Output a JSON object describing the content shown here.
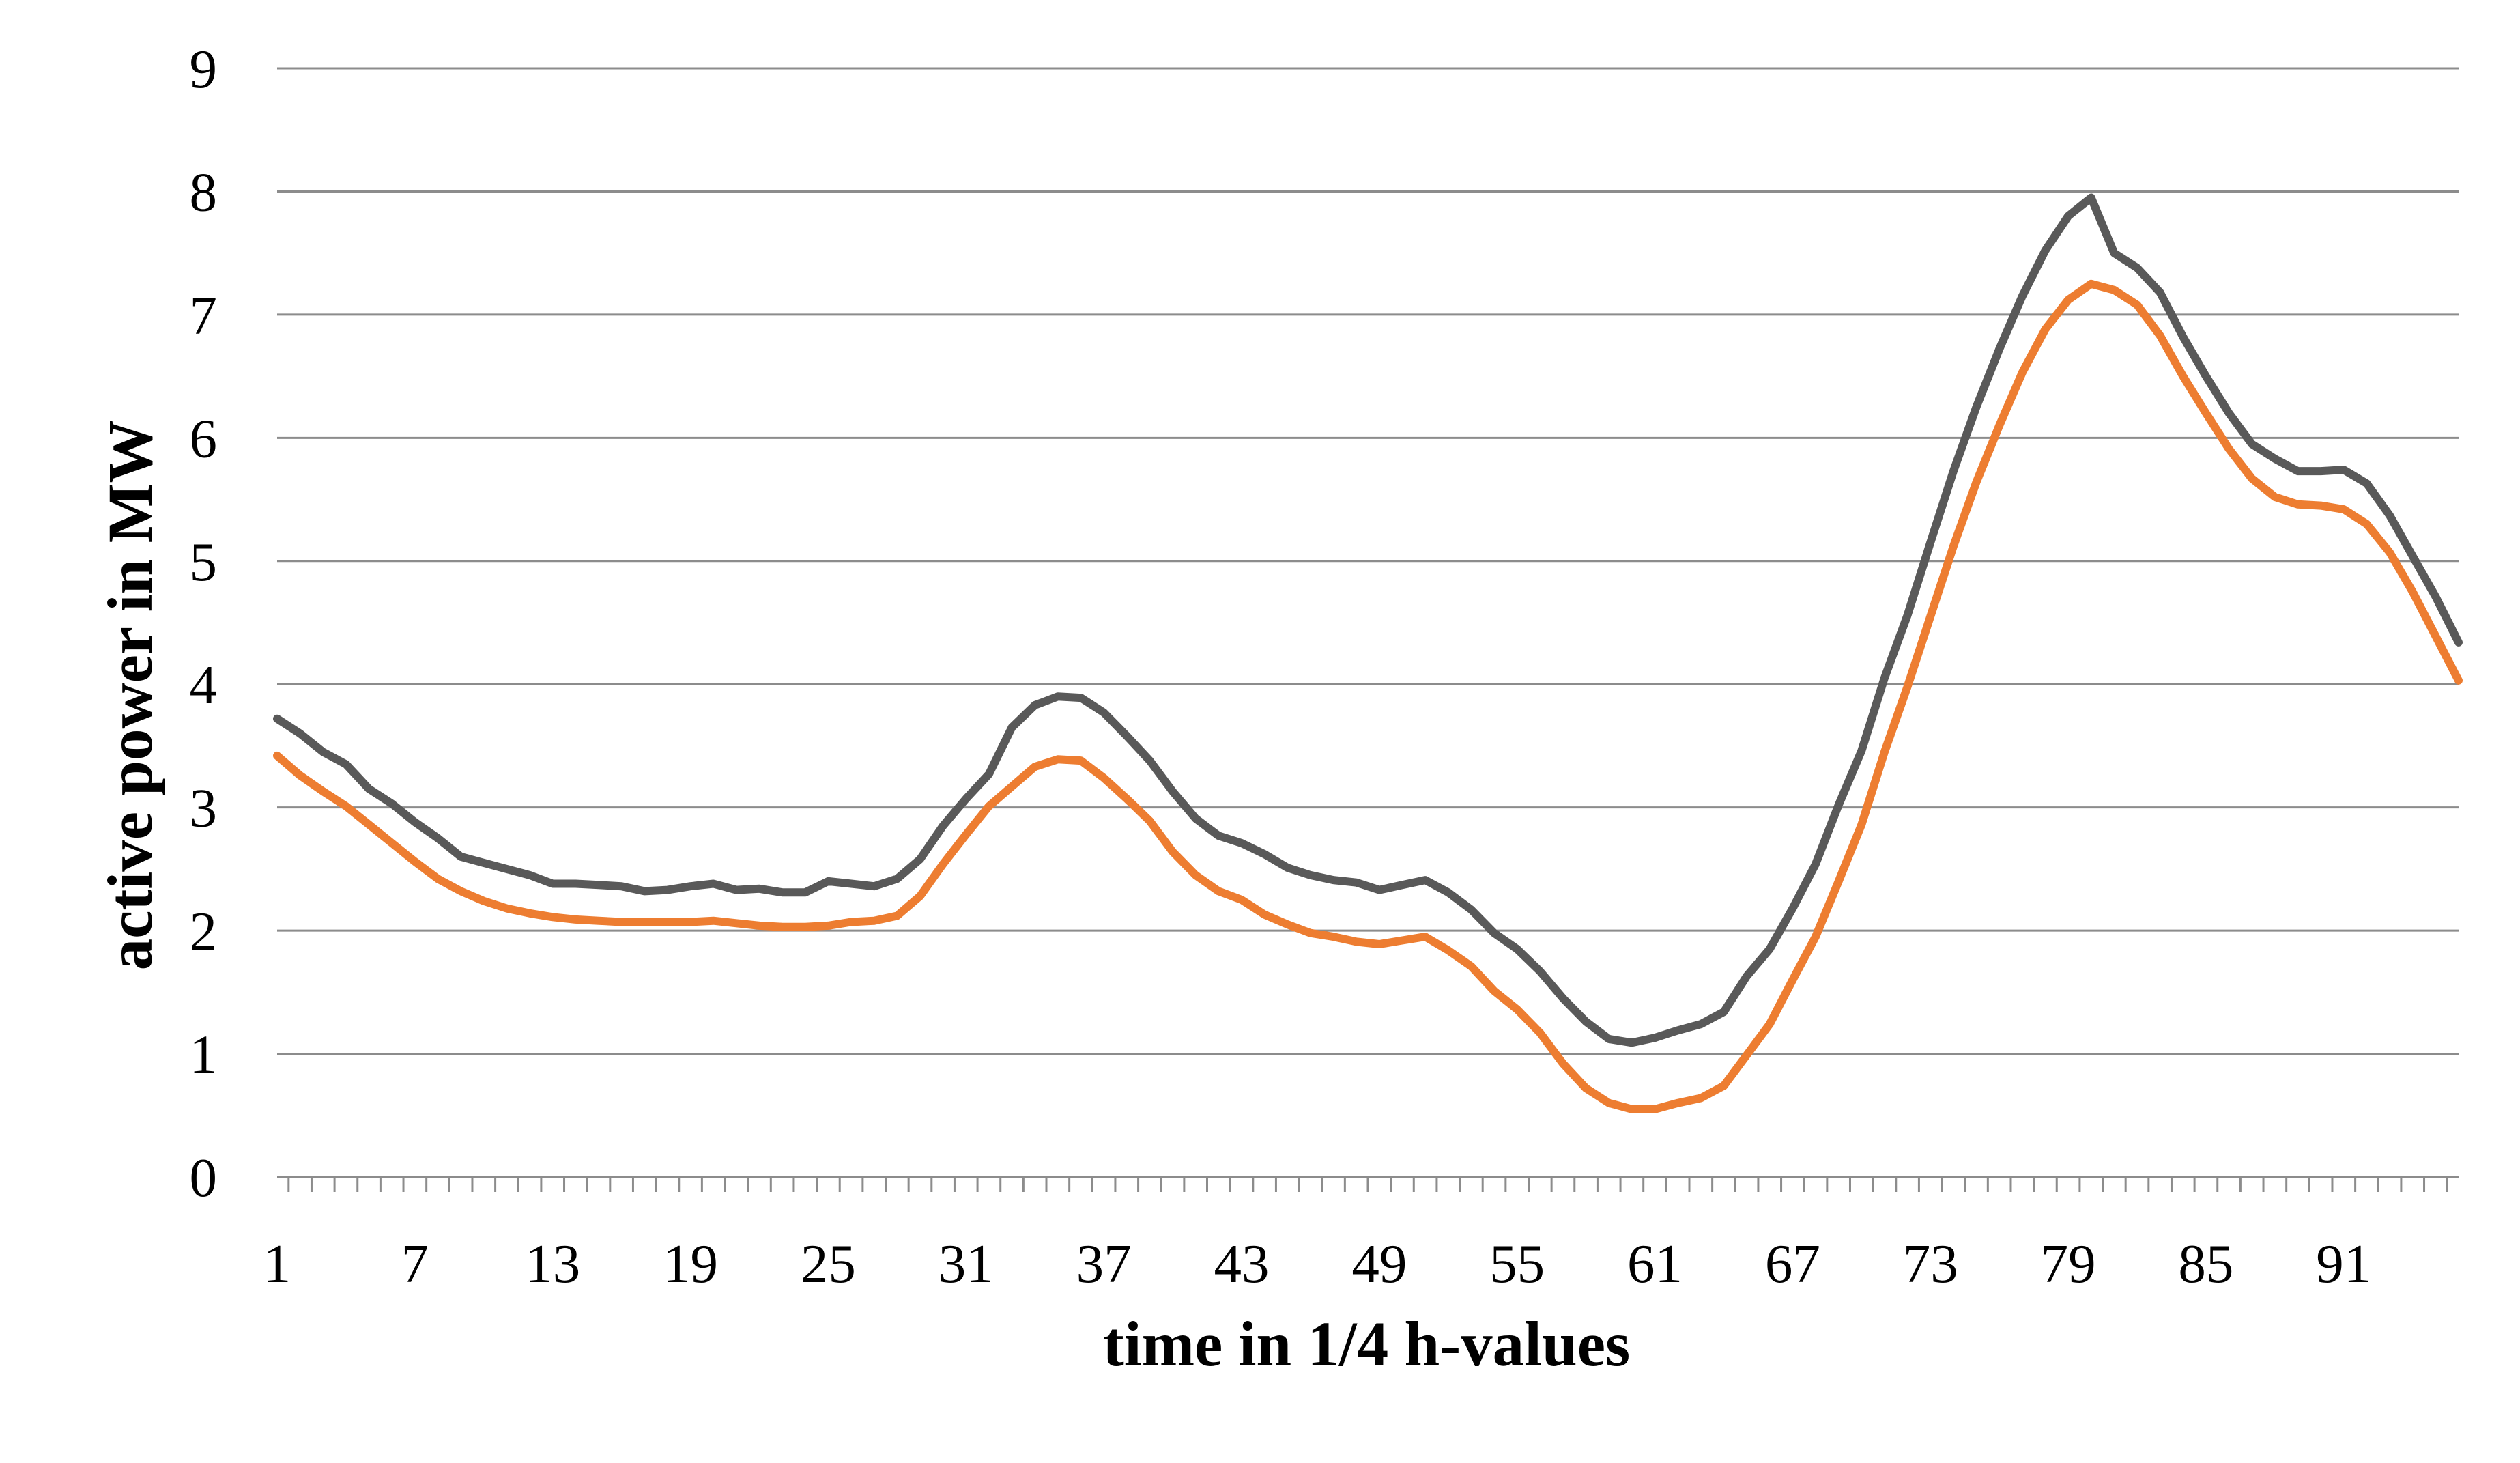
{
  "chart_data": {
    "type": "line",
    "title": "",
    "xlabel": "time in 1/4 h-values",
    "ylabel": "active power in MW",
    "ylim": [
      0,
      9
    ],
    "yticks": [
      0,
      1,
      2,
      3,
      4,
      5,
      6,
      7,
      8,
      9
    ],
    "xticks": [
      1,
      7,
      13,
      19,
      25,
      31,
      37,
      43,
      49,
      55,
      61,
      67,
      73,
      79,
      85,
      91
    ],
    "x_range": [
      1,
      96
    ],
    "grid": "horizontal",
    "legend": "none",
    "series": [
      {
        "color": "#595959",
        "x": [
          1,
          2,
          3,
          4,
          5,
          6,
          7,
          8,
          9,
          10,
          11,
          12,
          13,
          14,
          15,
          16,
          17,
          18,
          19,
          20,
          21,
          22,
          23,
          24,
          25,
          26,
          27,
          28,
          29,
          30,
          31,
          32,
          33,
          34,
          35,
          36,
          37,
          38,
          39,
          40,
          41,
          42,
          43,
          44,
          45,
          46,
          47,
          48,
          49,
          50,
          51,
          52,
          53,
          54,
          55,
          56,
          57,
          58,
          59,
          60,
          61,
          62,
          63,
          64,
          65,
          66,
          67,
          68,
          69,
          70,
          71,
          72,
          73,
          74,
          75,
          76,
          77,
          78,
          79,
          80,
          81,
          82,
          83,
          84,
          85,
          86,
          87,
          88,
          89,
          90,
          91,
          92,
          93,
          94,
          95,
          96
        ],
        "values": [
          3.72,
          3.6,
          3.45,
          3.35,
          3.15,
          3.03,
          2.88,
          2.75,
          2.6,
          2.55,
          2.5,
          2.45,
          2.38,
          2.38,
          2.37,
          2.36,
          2.32,
          2.33,
          2.36,
          2.38,
          2.33,
          2.34,
          2.31,
          2.31,
          2.4,
          2.38,
          2.36,
          2.42,
          2.58,
          2.85,
          3.07,
          3.27,
          3.65,
          3.83,
          3.9,
          3.89,
          3.77,
          3.58,
          3.38,
          3.13,
          2.91,
          2.77,
          2.71,
          2.62,
          2.51,
          2.45,
          2.41,
          2.39,
          2.33,
          2.37,
          2.41,
          2.31,
          2.17,
          1.98,
          1.85,
          1.67,
          1.45,
          1.26,
          1.12,
          1.09,
          1.13,
          1.19,
          1.24,
          1.34,
          1.63,
          1.85,
          2.18,
          2.54,
          3.02,
          3.46,
          4.05,
          4.56,
          5.15,
          5.73,
          6.25,
          6.72,
          7.15,
          7.52,
          7.8,
          7.95,
          7.5,
          7.38,
          7.18,
          6.82,
          6.5,
          6.2,
          5.95,
          5.83,
          5.73,
          5.73,
          5.74,
          5.63,
          5.37,
          5.04,
          4.71,
          4.34
        ]
      },
      {
        "color": "#ed7d31",
        "x": [
          1,
          2,
          3,
          4,
          5,
          6,
          7,
          8,
          9,
          10,
          11,
          12,
          13,
          14,
          15,
          16,
          17,
          18,
          19,
          20,
          21,
          22,
          23,
          24,
          25,
          26,
          27,
          28,
          29,
          30,
          31,
          32,
          33,
          34,
          35,
          36,
          37,
          38,
          39,
          40,
          41,
          42,
          43,
          44,
          45,
          46,
          47,
          48,
          49,
          50,
          51,
          52,
          53,
          54,
          55,
          56,
          57,
          58,
          59,
          60,
          61,
          62,
          63,
          64,
          65,
          66,
          67,
          68,
          69,
          70,
          71,
          72,
          73,
          74,
          75,
          76,
          77,
          78,
          79,
          80,
          81,
          82,
          83,
          84,
          85,
          86,
          87,
          88,
          89,
          90,
          91,
          92,
          93,
          94,
          95,
          96
        ],
        "values": [
          3.42,
          3.26,
          3.13,
          3.01,
          2.86,
          2.71,
          2.56,
          2.42,
          2.32,
          2.24,
          2.18,
          2.14,
          2.11,
          2.09,
          2.08,
          2.07,
          2.07,
          2.07,
          2.07,
          2.08,
          2.06,
          2.04,
          2.03,
          2.03,
          2.04,
          2.07,
          2.08,
          2.12,
          2.28,
          2.54,
          2.78,
          3.01,
          3.17,
          3.33,
          3.39,
          3.38,
          3.24,
          3.07,
          2.89,
          2.64,
          2.45,
          2.32,
          2.25,
          2.13,
          2.05,
          1.98,
          1.95,
          1.91,
          1.89,
          1.92,
          1.95,
          1.84,
          1.71,
          1.51,
          1.36,
          1.17,
          0.92,
          0.72,
          0.6,
          0.55,
          0.55,
          0.6,
          0.64,
          0.74,
          0.99,
          1.24,
          1.6,
          1.95,
          2.4,
          2.86,
          3.45,
          3.98,
          4.55,
          5.12,
          5.64,
          6.1,
          6.53,
          6.88,
          7.12,
          7.25,
          7.2,
          7.08,
          6.83,
          6.5,
          6.2,
          5.91,
          5.67,
          5.52,
          5.46,
          5.45,
          5.42,
          5.3,
          5.07,
          4.75,
          4.39,
          4.03
        ]
      }
    ]
  }
}
